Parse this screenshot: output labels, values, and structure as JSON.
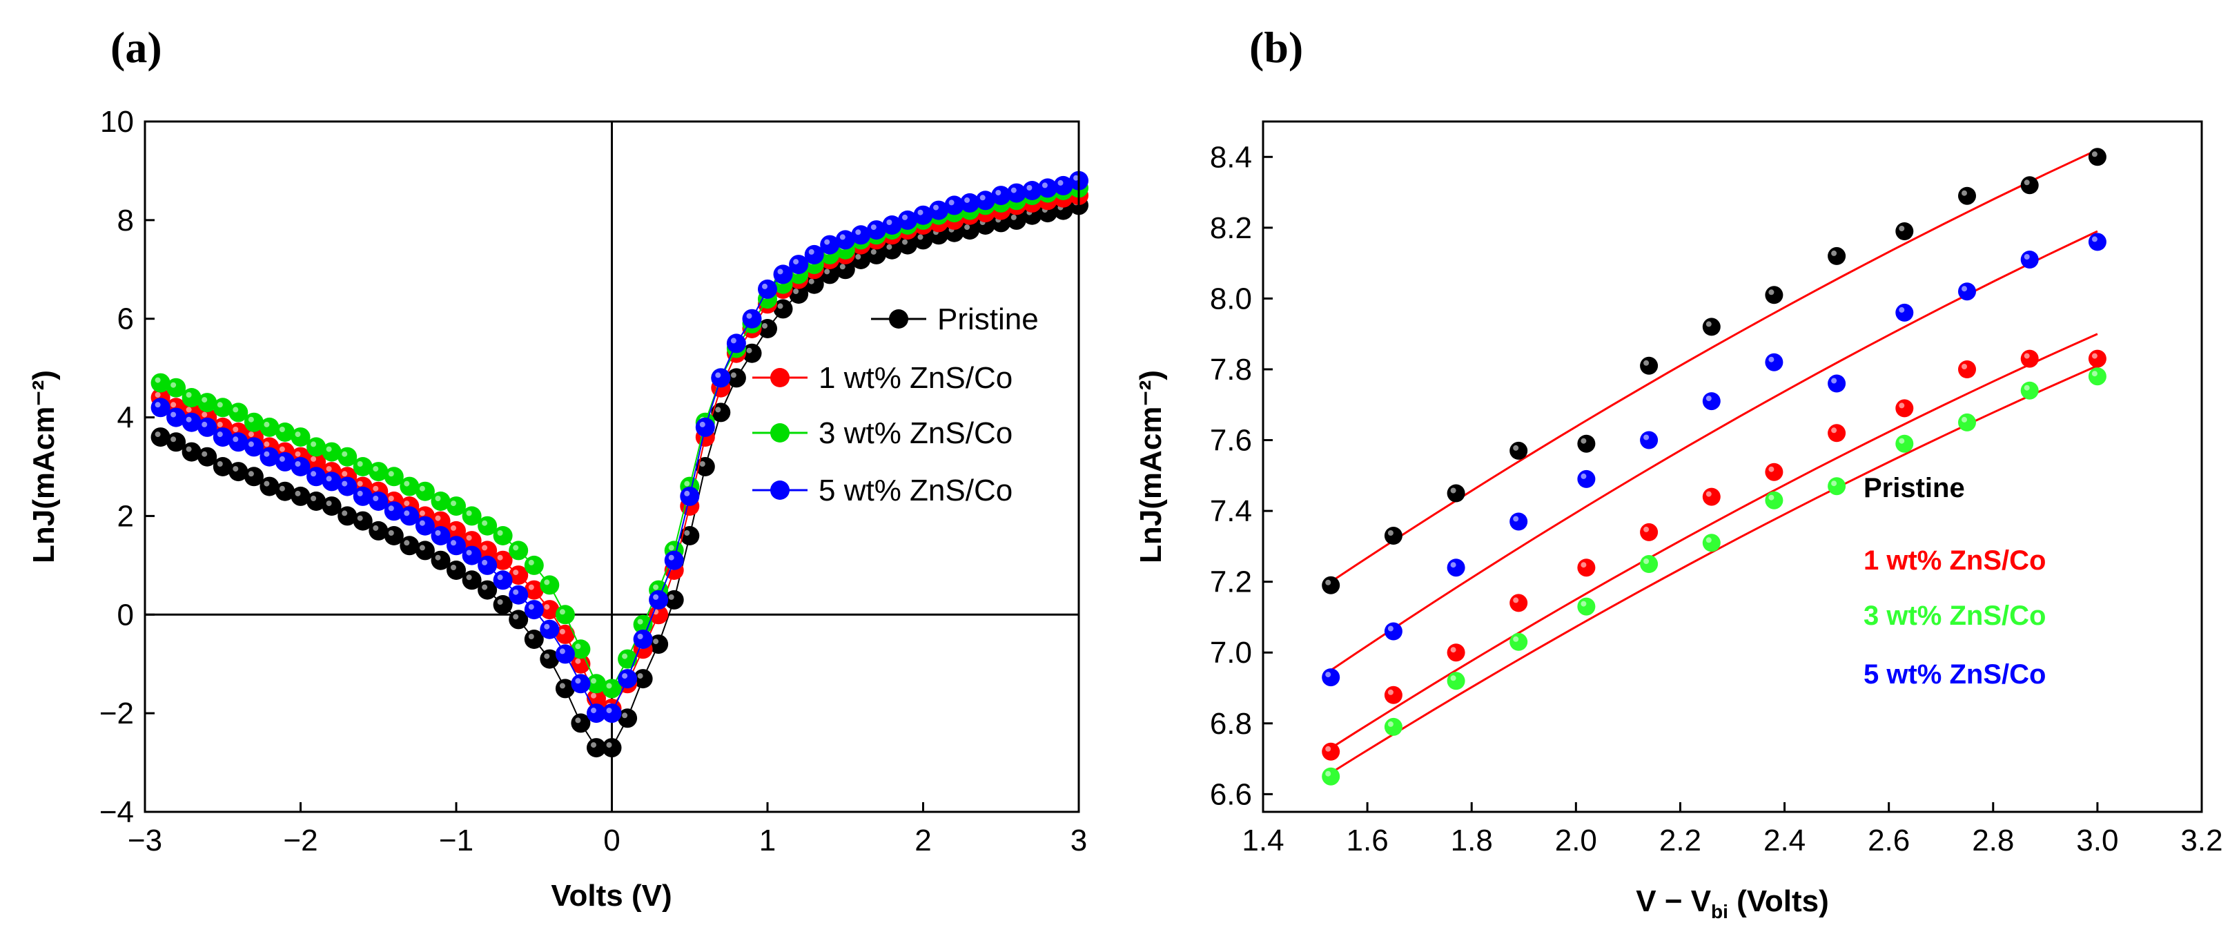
{
  "chart_data": [
    {
      "type": "scatter",
      "panel_label": "(a)",
      "xlabel": "Volts (V)",
      "ylabel": "LnJ(mAcm⁻²)",
      "xlim": [
        -3,
        3
      ],
      "ylim": [
        -4,
        10
      ],
      "x_ticks": [
        -3,
        -2,
        -1,
        0,
        1,
        2,
        3
      ],
      "x_tick_labels": [
        "−3",
        "−2",
        "−1",
        "0",
        "1",
        "2",
        "3"
      ],
      "y_ticks": [
        -4,
        -2,
        0,
        2,
        4,
        6,
        8,
        10
      ],
      "y_tick_labels": [
        "−4",
        "−2",
        "0",
        "2",
        "4",
        "6",
        "8",
        "10"
      ],
      "grid": false,
      "zero_lines": true,
      "legend_position": "center-right",
      "x": [
        -2.9,
        -2.8,
        -2.7,
        -2.6,
        -2.5,
        -2.4,
        -2.3,
        -2.2,
        -2.1,
        -2.0,
        -1.9,
        -1.8,
        -1.7,
        -1.6,
        -1.5,
        -1.4,
        -1.3,
        -1.2,
        -1.1,
        -1.0,
        -0.9,
        -0.8,
        -0.7,
        -0.6,
        -0.5,
        -0.4,
        -0.3,
        -0.2,
        -0.1,
        0.0,
        0.1,
        0.2,
        0.3,
        0.4,
        0.5,
        0.6,
        0.7,
        0.8,
        0.9,
        1.0,
        1.1,
        1.2,
        1.3,
        1.4,
        1.5,
        1.6,
        1.7,
        1.8,
        1.9,
        2.0,
        2.1,
        2.2,
        2.3,
        2.4,
        2.5,
        2.6,
        2.7,
        2.8,
        2.9,
        3.0
      ],
      "series": [
        {
          "name": "Pristine",
          "color": "#000000",
          "values": [
            3.6,
            3.5,
            3.3,
            3.2,
            3.0,
            2.9,
            2.8,
            2.6,
            2.5,
            2.4,
            2.3,
            2.2,
            2.0,
            1.9,
            1.7,
            1.6,
            1.4,
            1.3,
            1.1,
            0.9,
            0.7,
            0.5,
            0.2,
            -0.1,
            -0.5,
            -0.9,
            -1.5,
            -2.2,
            -2.7,
            -2.7,
            -2.1,
            -1.3,
            -0.6,
            0.3,
            1.6,
            3.0,
            4.1,
            4.8,
            5.3,
            5.8,
            6.2,
            6.5,
            6.7,
            6.9,
            7.0,
            7.2,
            7.3,
            7.4,
            7.5,
            7.6,
            7.7,
            7.75,
            7.8,
            7.9,
            7.95,
            8.0,
            8.1,
            8.15,
            8.2,
            8.3
          ]
        },
        {
          "name": "1 wt% ZnS/Co",
          "color": "#ff0000",
          "values": [
            4.4,
            4.2,
            4.1,
            4.0,
            3.8,
            3.7,
            3.6,
            3.4,
            3.3,
            3.2,
            3.1,
            2.9,
            2.8,
            2.6,
            2.5,
            2.3,
            2.2,
            2.0,
            1.9,
            1.7,
            1.5,
            1.3,
            1.1,
            0.8,
            0.5,
            0.1,
            -0.4,
            -1.0,
            -1.7,
            -1.9,
            -1.4,
            -0.7,
            0.0,
            0.9,
            2.2,
            3.6,
            4.6,
            5.3,
            5.8,
            6.3,
            6.6,
            6.8,
            7.0,
            7.2,
            7.3,
            7.5,
            7.6,
            7.7,
            7.8,
            7.9,
            7.95,
            8.0,
            8.1,
            8.15,
            8.2,
            8.3,
            8.35,
            8.4,
            8.45,
            8.5
          ]
        },
        {
          "name": "3 wt% ZnS/Co",
          "color": "#00dd00",
          "values": [
            4.7,
            4.6,
            4.4,
            4.3,
            4.2,
            4.1,
            3.9,
            3.8,
            3.7,
            3.6,
            3.4,
            3.3,
            3.2,
            3.0,
            2.9,
            2.8,
            2.6,
            2.5,
            2.3,
            2.2,
            2.0,
            1.8,
            1.6,
            1.3,
            1.0,
            0.6,
            0.0,
            -0.7,
            -1.4,
            -1.5,
            -0.9,
            -0.2,
            0.5,
            1.3,
            2.6,
            3.9,
            4.8,
            5.4,
            5.9,
            6.4,
            6.7,
            6.9,
            7.1,
            7.3,
            7.4,
            7.6,
            7.7,
            7.8,
            7.9,
            8.0,
            8.1,
            8.15,
            8.2,
            8.3,
            8.35,
            8.4,
            8.5,
            8.55,
            8.6,
            8.65
          ]
        },
        {
          "name": "5 wt% ZnS/Co",
          "color": "#0000ff",
          "values": [
            4.2,
            4.0,
            3.9,
            3.8,
            3.6,
            3.5,
            3.4,
            3.2,
            3.1,
            3.0,
            2.8,
            2.7,
            2.6,
            2.4,
            2.3,
            2.1,
            2.0,
            1.8,
            1.6,
            1.4,
            1.2,
            1.0,
            0.7,
            0.4,
            0.1,
            -0.3,
            -0.8,
            -1.4,
            -2.0,
            -2.0,
            -1.3,
            -0.5,
            0.3,
            1.1,
            2.4,
            3.8,
            4.8,
            5.5,
            6.0,
            6.6,
            6.9,
            7.1,
            7.3,
            7.5,
            7.6,
            7.7,
            7.8,
            7.9,
            8.0,
            8.1,
            8.2,
            8.3,
            8.35,
            8.4,
            8.5,
            8.55,
            8.6,
            8.65,
            8.7,
            8.8
          ]
        }
      ]
    },
    {
      "type": "scatter",
      "panel_label": "(b)",
      "xlabel_main": "V − V",
      "xlabel_sub": "bi",
      "xlabel_tail": " (Volts)",
      "ylabel": "LnJ(mAcm⁻²)",
      "xlim": [
        1.4,
        3.2
      ],
      "ylim": [
        6.55,
        8.5
      ],
      "x_ticks": [
        1.4,
        1.6,
        1.8,
        2.0,
        2.2,
        2.4,
        2.6,
        2.8,
        3.0,
        3.2
      ],
      "x_tick_labels": [
        "1.4",
        "1.6",
        "1.8",
        "2.0",
        "2.2",
        "2.4",
        "2.6",
        "2.8",
        "3.0",
        "3.2"
      ],
      "y_ticks": [
        6.6,
        6.8,
        7.0,
        7.2,
        7.4,
        7.6,
        7.8,
        8.0,
        8.2,
        8.4
      ],
      "y_tick_labels": [
        "6.6",
        "6.8",
        "7.0",
        "7.2",
        "7.4",
        "7.6",
        "7.8",
        "8.0",
        "8.2",
        "8.4"
      ],
      "grid": false,
      "fit_line_color": "#ff0000",
      "legend_position": "center-right",
      "x": [
        1.53,
        1.65,
        1.77,
        1.89,
        2.02,
        2.14,
        2.26,
        2.38,
        2.5,
        2.63,
        2.75,
        2.87,
        3.0
      ],
      "series": [
        {
          "name": "Pristine",
          "color": "#000000",
          "values": [
            7.19,
            7.33,
            7.45,
            7.57,
            7.59,
            7.81,
            7.92,
            8.01,
            8.12,
            8.19,
            8.29,
            8.32,
            8.4
          ],
          "fit": [
            7.2,
            8.42
          ]
        },
        {
          "name": "1 wt% ZnS/Co",
          "color": "#ff0000",
          "values": [
            6.72,
            6.88,
            7.0,
            7.14,
            7.24,
            7.34,
            7.44,
            7.51,
            7.62,
            7.69,
            7.8,
            7.83,
            7.83
          ],
          "fit": [
            6.73,
            7.9
          ]
        },
        {
          "name": "3 wt% ZnS/Co",
          "color": "#33ff33",
          "values": [
            6.65,
            6.79,
            6.92,
            7.03,
            7.13,
            7.25,
            7.31,
            7.43,
            7.47,
            7.59,
            7.65,
            7.74,
            7.78
          ],
          "fit": [
            6.66,
            7.81
          ]
        },
        {
          "name": "5 wt% ZnS/Co",
          "color": "#0000ff",
          "values": [
            6.93,
            7.06,
            7.24,
            7.37,
            7.49,
            7.6,
            7.71,
            7.82,
            7.76,
            7.96,
            8.02,
            8.11,
            8.16
          ],
          "fit": [
            6.95,
            8.19
          ]
        }
      ]
    }
  ]
}
